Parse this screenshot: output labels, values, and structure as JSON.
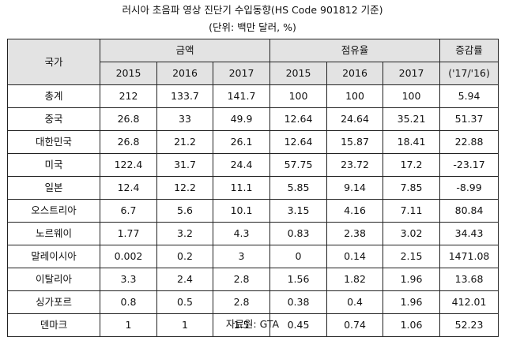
{
  "title": "러시아 초음파 영상 진단기 수입동향(HS Code 901812 기준)",
  "unit": "(단위: 백만 달러, %)",
  "source": "자료원: GTA",
  "header": {
    "country": "국가",
    "amount": "금액",
    "share": "점유율",
    "growth": "증감률",
    "years": [
      "2015",
      "2016",
      "2017"
    ],
    "growth_period": "('17/'16)"
  },
  "rows": [
    {
      "country": "총계",
      "a2015": "212",
      "a2016": "133.7",
      "a2017": "141.7",
      "s2015": "100",
      "s2016": "100",
      "s2017": "100",
      "growth": "5.94"
    },
    {
      "country": "중국",
      "a2015": "26.8",
      "a2016": "33",
      "a2017": "49.9",
      "s2015": "12.64",
      "s2016": "24.64",
      "s2017": "35.21",
      "growth": "51.37"
    },
    {
      "country": "대한민국",
      "a2015": "26.8",
      "a2016": "21.2",
      "a2017": "26.1",
      "s2015": "12.64",
      "s2016": "15.87",
      "s2017": "18.41",
      "growth": "22.88"
    },
    {
      "country": "미국",
      "a2015": "122.4",
      "a2016": "31.7",
      "a2017": "24.4",
      "s2015": "57.75",
      "s2016": "23.72",
      "s2017": "17.2",
      "growth": "-23.17"
    },
    {
      "country": "일본",
      "a2015": "12.4",
      "a2016": "12.2",
      "a2017": "11.1",
      "s2015": "5.85",
      "s2016": "9.14",
      "s2017": "7.85",
      "growth": "-8.99"
    },
    {
      "country": "오스트리아",
      "a2015": "6.7",
      "a2016": "5.6",
      "a2017": "10.1",
      "s2015": "3.15",
      "s2016": "4.16",
      "s2017": "7.11",
      "growth": "80.84"
    },
    {
      "country": "노르웨이",
      "a2015": "1.77",
      "a2016": "3.2",
      "a2017": "4.3",
      "s2015": "0.83",
      "s2016": "2.38",
      "s2017": "3.02",
      "growth": "34.43"
    },
    {
      "country": "말레이시아",
      "a2015": "0.002",
      "a2016": "0.2",
      "a2017": "3",
      "s2015": "0",
      "s2016": "0.14",
      "s2017": "2.15",
      "growth": "1471.08"
    },
    {
      "country": "이탈리아",
      "a2015": "3.3",
      "a2016": "2.4",
      "a2017": "2.8",
      "s2015": "1.56",
      "s2016": "1.82",
      "s2017": "1.96",
      "growth": "13.68"
    },
    {
      "country": "싱가포르",
      "a2015": "0.8",
      "a2016": "0.5",
      "a2017": "2.8",
      "s2015": "0.38",
      "s2016": "0.4",
      "s2017": "1.96",
      "growth": "412.01"
    },
    {
      "country": "덴마크",
      "a2015": "1",
      "a2016": "1",
      "a2017": "1.5",
      "s2015": "0.45",
      "s2016": "0.74",
      "s2017": "1.06",
      "growth": "52.23"
    }
  ]
}
